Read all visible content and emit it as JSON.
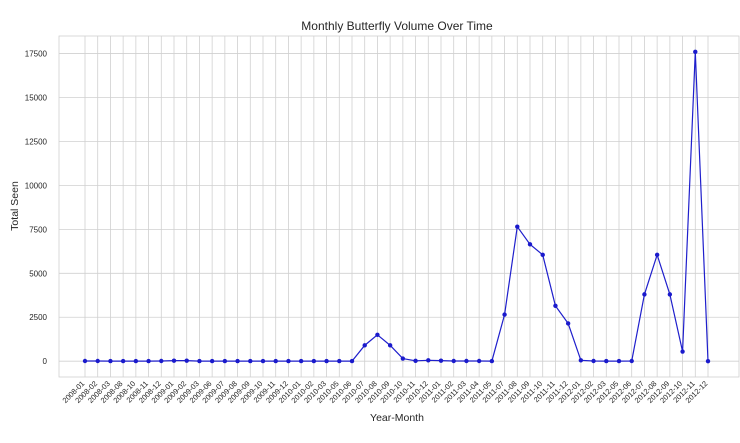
{
  "chart_data": {
    "type": "line",
    "title": "Monthly Butterfly Volume Over Time",
    "xlabel": "Year-Month",
    "ylabel": "Total Seen",
    "ylim": [
      -900,
      18500
    ],
    "yticks": [
      0,
      2500,
      5000,
      7500,
      10000,
      12500,
      15000,
      17500
    ],
    "grid": true,
    "marker": "circle",
    "colors": {
      "line": "#1f1fcc",
      "marker": "#1a1acc"
    },
    "categories": [
      "2008-01",
      "2008-02",
      "2008-03",
      "2008-08",
      "2008-10",
      "2008-11",
      "2008-12",
      "2009-01",
      "2009-02",
      "2009-03",
      "2009-06",
      "2009-07",
      "2009-08",
      "2009-09",
      "2009-10",
      "2009-11",
      "2009-12",
      "2010-01",
      "2010-02",
      "2010-03",
      "2010-05",
      "2010-06",
      "2010-07",
      "2010-08",
      "2010-09",
      "2010-10",
      "2010-11",
      "2010-12",
      "2011-01",
      "2011-02",
      "2011-03",
      "2011-04",
      "2011-05",
      "2011-07",
      "2011-08",
      "2011-09",
      "2011-10",
      "2011-11",
      "2011-12",
      "2012-01",
      "2012-02",
      "2012-03",
      "2012-05",
      "2012-06",
      "2012-07",
      "2012-08",
      "2012-09",
      "2012-10",
      "2012-11",
      "2012-12"
    ],
    "values": [
      10,
      10,
      5,
      5,
      5,
      5,
      10,
      30,
      30,
      5,
      5,
      5,
      5,
      5,
      5,
      5,
      5,
      5,
      5,
      5,
      5,
      5,
      900,
      1500,
      900,
      150,
      20,
      50,
      30,
      10,
      10,
      10,
      5,
      2650,
      7650,
      6650,
      6050,
      3150,
      2150,
      50,
      10,
      5,
      5,
      10,
      3800,
      6050,
      3800,
      550,
      17600,
      0
    ]
  }
}
